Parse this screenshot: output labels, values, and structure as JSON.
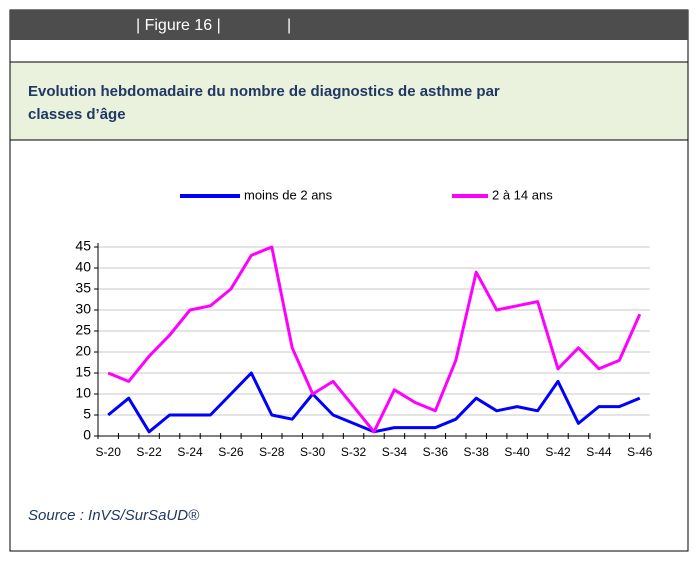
{
  "header": {
    "label": "| Figure 16 |",
    "separator": "|"
  },
  "source": "Source : InVS/SurSaUD®",
  "chart_data": {
    "type": "line",
    "title": [
      "Evolution hebdomadaire du nombre de diagnostics de asthme par",
      "classes d’âge"
    ],
    "categories": [
      "S-20",
      null,
      "S-22",
      null,
      "S-24",
      null,
      "S-26",
      null,
      "S-28",
      null,
      "S-30",
      null,
      "S-32",
      null,
      "S-34",
      null,
      "S-36",
      null,
      "S-38",
      null,
      "S-40",
      null,
      "S-42",
      null,
      "S-44",
      null,
      "S-46"
    ],
    "series": [
      {
        "name": "moins de 2 ans",
        "color": "#0000ff",
        "values": [
          5,
          9,
          1,
          5,
          5,
          5,
          10,
          15,
          5,
          4,
          10,
          5,
          3,
          1,
          2,
          2,
          2,
          4,
          9,
          6,
          7,
          6,
          13,
          3,
          7,
          7,
          9
        ]
      },
      {
        "name": "2 à 14 ans",
        "color": "#ff00ff",
        "values": [
          15,
          13,
          19,
          24,
          30,
          31,
          35,
          43,
          45,
          21,
          10,
          13,
          7,
          1,
          11,
          8,
          6,
          18,
          39,
          30,
          31,
          32,
          16,
          21,
          16,
          18,
          29
        ]
      }
    ],
    "ylim": [
      0,
      45
    ],
    "yticks": [
      0,
      5,
      10,
      15,
      20,
      25,
      30,
      35,
      40,
      45
    ],
    "grid": true,
    "legend": "top"
  }
}
